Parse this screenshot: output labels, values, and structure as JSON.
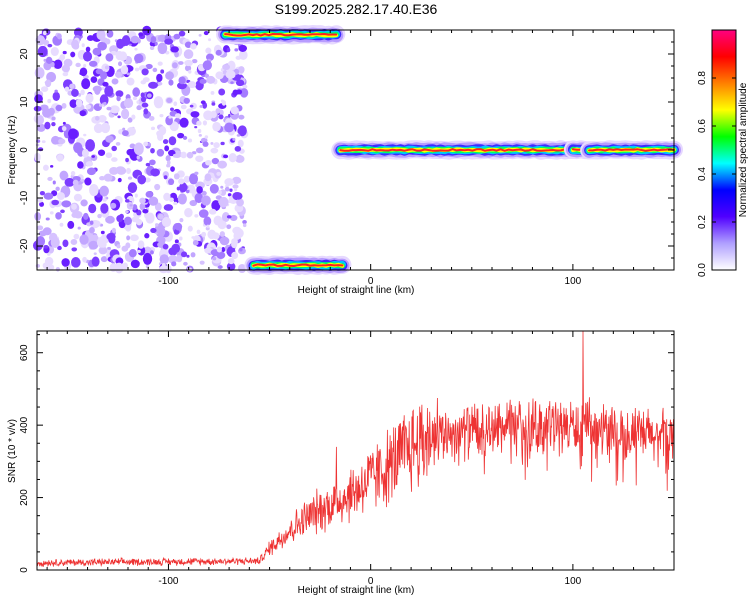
{
  "title": "S199.2025.282.17.40.E36",
  "chart_data": [
    {
      "type": "heatmap",
      "name": "spectrogram",
      "xlabel": "Height of straight line (km)",
      "ylabel": "Frequency (Hz)",
      "xlim": [
        -165,
        150
      ],
      "ylim": [
        -25,
        25
      ],
      "xticks": [
        -100,
        0,
        100
      ],
      "xtick_labels": [
        "-100",
        "0",
        "100"
      ],
      "yticks": [
        -20,
        -10,
        0,
        10,
        20
      ],
      "ytick_labels": [
        "-20",
        "-10",
        "0",
        "10",
        "20"
      ],
      "noise_region_x": [
        -165,
        -62
      ],
      "signal_segments": [
        {
          "x": [
            -15,
            100
          ],
          "freq_hz": 0
        },
        {
          "x": [
            100,
            108
          ],
          "freq_hz": 0
        },
        {
          "x": [
            108,
            150
          ],
          "freq_hz": 0
        },
        {
          "x": [
            -72,
            -17
          ],
          "freq_hz": 24
        },
        {
          "x": [
            -58,
            -14
          ],
          "freq_hz": -24
        }
      ],
      "colorbar": {
        "label": "Normalized spectral amplitude",
        "range": [
          0,
          1
        ],
        "ticks": [
          0.0,
          0.2,
          0.4,
          0.6,
          0.8
        ],
        "tick_labels": [
          "0.0",
          "0.2",
          "0.4",
          "0.6",
          "0.8"
        ],
        "colors": [
          "#ffffff",
          "#b0a0ff",
          "#5000ff",
          "#0000ff",
          "#00ffff",
          "#00ff00",
          "#ffff00",
          "#ff8000",
          "#ff0000",
          "#ff0080"
        ]
      }
    },
    {
      "type": "line",
      "name": "snr",
      "xlabel": "Height of straight line (km)",
      "ylabel": "SNR (10 * v/v)",
      "xlim": [
        -165,
        150
      ],
      "ylim": [
        0,
        660
      ],
      "xticks": [
        -100,
        0,
        100
      ],
      "xtick_labels": [
        "-100",
        "0",
        "100"
      ],
      "yticks": [
        0,
        200,
        400,
        600
      ],
      "ytick_labels": [
        "0",
        "200",
        "400",
        "600"
      ],
      "color": "#ee3333",
      "trend_x": [
        -165,
        -55,
        -50,
        -40,
        -30,
        -20,
        -10,
        0,
        10,
        20,
        30,
        40,
        50,
        60,
        70,
        80,
        90,
        100,
        110,
        120,
        130,
        140,
        150
      ],
      "trend_y": [
        20,
        25,
        60,
        110,
        150,
        180,
        210,
        250,
        290,
        340,
        370,
        380,
        385,
        390,
        395,
        398,
        400,
        395,
        390,
        380,
        375,
        370,
        365
      ],
      "peaks": [
        {
          "x": 105,
          "y": 660
        },
        {
          "x": 33,
          "y": 475
        },
        {
          "x": -17,
          "y": 340
        },
        {
          "x": 96,
          "y": 430
        }
      ]
    }
  ]
}
